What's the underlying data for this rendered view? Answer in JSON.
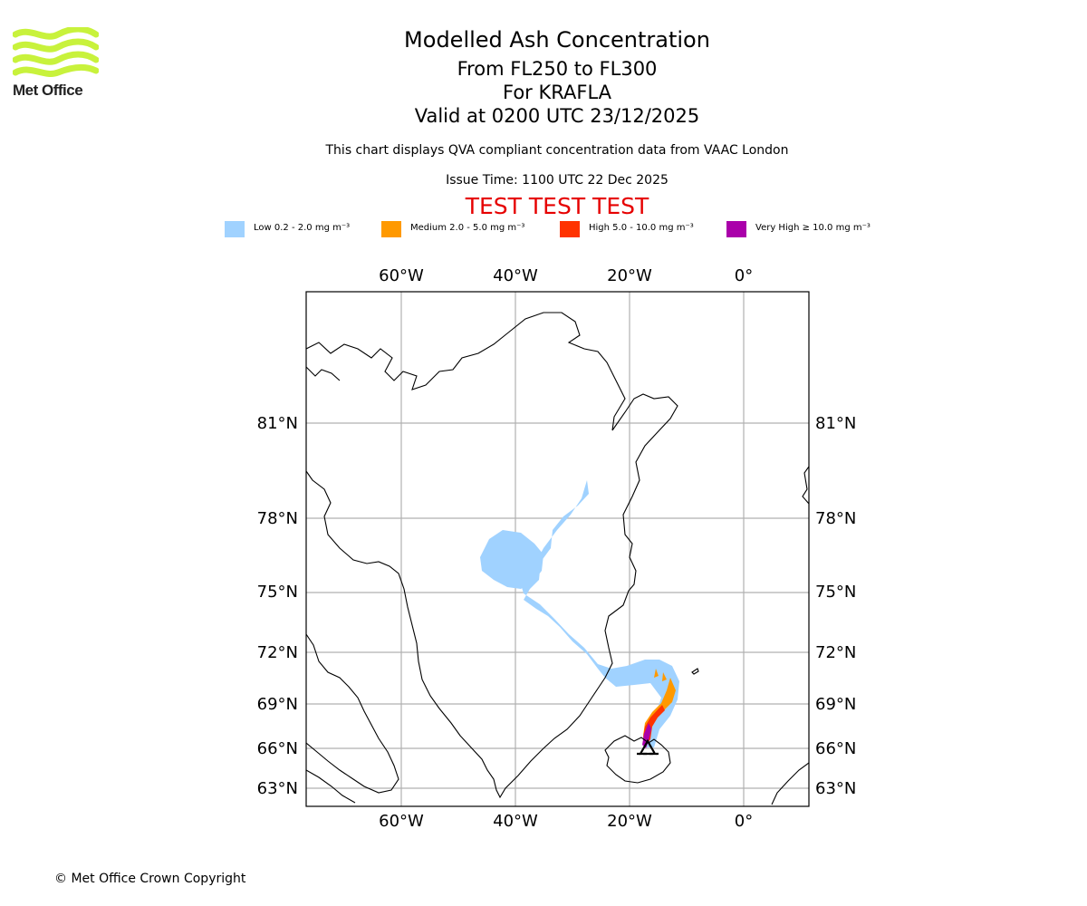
{
  "logo": {
    "text": "Met Office",
    "color": "#c8f23c"
  },
  "title": {
    "main": "Modelled Ash Concentration",
    "levels": "From FL250 to FL300",
    "volcano": "For KRAFLA",
    "valid": "Valid at 0200 UTC 23/12/2025"
  },
  "subtitle": "This chart displays QVA compliant concentration data from VAAC London",
  "issue_time": "Issue Time: 1100 UTC 22 Dec 2025",
  "test_banner": "TEST TEST TEST",
  "legend": [
    {
      "label": "Low 0.2 - 2.0 mg m⁻³",
      "color": "#a0d2ff"
    },
    {
      "label": "Medium 2.0 - 5.0 mg m⁻³",
      "color": "#ff9900"
    },
    {
      "label": "High 5.0 - 10.0 mg m⁻³",
      "color": "#ff3300"
    },
    {
      "label": "Very High ≥ 10.0 mg m⁻³",
      "color": "#aa00aa"
    }
  ],
  "map": {
    "lon_labels": [
      "60°W",
      "40°W",
      "20°W",
      "0°"
    ],
    "lat_labels": [
      "81°N",
      "78°N",
      "75°N",
      "72°N",
      "69°N",
      "66°N",
      "63°N"
    ],
    "grid_color": "#b0b0b0",
    "source_marker": "volcano-location"
  },
  "copyright": "© Met Office Crown Copyright"
}
